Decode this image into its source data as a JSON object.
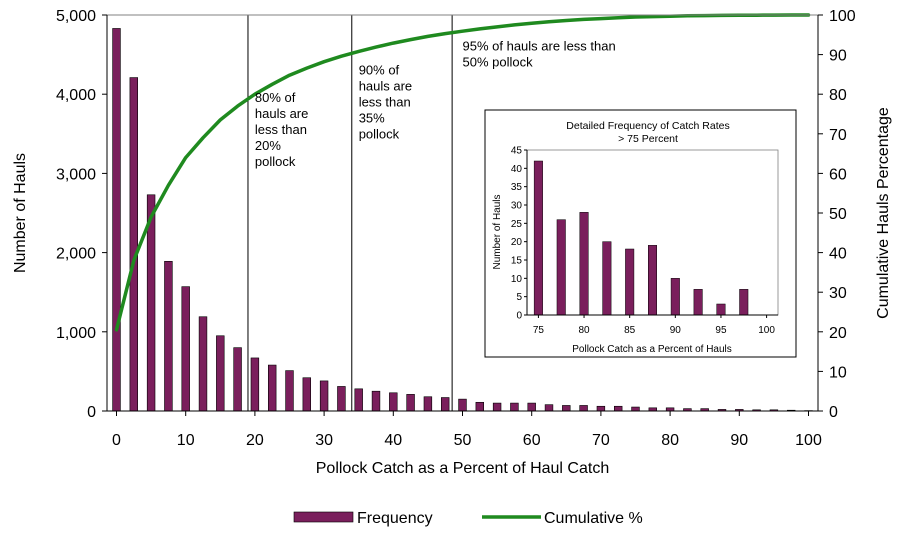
{
  "chart_data": [
    {
      "type": "bar",
      "xlabel": "Pollock Catch as a Percent of Haul Catch",
      "ylabel": "Number of Hauls",
      "y2label": "Cumulative Hauls Percentage",
      "xlim": [
        0,
        100
      ],
      "ylim": [
        0,
        5000
      ],
      "y2lim": [
        0,
        100
      ],
      "xticks": [
        "0",
        "10",
        "20",
        "30",
        "40",
        "50",
        "60",
        "70",
        "80",
        "90",
        "100"
      ],
      "yticks": [
        "0",
        "1,000",
        "2,000",
        "3,000",
        "4,000",
        "5,000"
      ],
      "y2ticks": [
        "0",
        "10",
        "20",
        "30",
        "40",
        "50",
        "60",
        "70",
        "80",
        "90",
        "100"
      ],
      "grid": false,
      "legend_position": "bottom-center",
      "series": [
        {
          "name": "Frequency",
          "kind": "bar",
          "color": "#7a1f5c",
          "x": [
            0,
            2.5,
            5,
            7.5,
            10,
            12.5,
            15,
            17.5,
            20,
            22.5,
            25,
            27.5,
            30,
            32.5,
            35,
            37.5,
            40,
            42.5,
            45,
            47.5,
            50,
            52.5,
            55,
            57.5,
            60,
            62.5,
            65,
            67.5,
            70,
            72.5,
            75,
            77.5,
            80,
            82.5,
            85,
            87.5,
            90,
            92.5,
            95,
            97.5,
            100
          ],
          "values": [
            4830,
            4210,
            2730,
            1890,
            1570,
            1190,
            950,
            800,
            670,
            580,
            510,
            420,
            380,
            310,
            280,
            250,
            230,
            210,
            180,
            170,
            150,
            110,
            100,
            100,
            100,
            80,
            70,
            70,
            60,
            60,
            50,
            40,
            40,
            30,
            30,
            20,
            20,
            15,
            15,
            10,
            5
          ]
        },
        {
          "name": "Cumulative %",
          "kind": "line",
          "axis": "right",
          "color": "#1f8a1f",
          "x": [
            0,
            2.5,
            5,
            7.5,
            10,
            12.5,
            15,
            17.5,
            20,
            22.5,
            25,
            27.5,
            30,
            32.5,
            35,
            37.5,
            40,
            42.5,
            45,
            47.5,
            50,
            52.5,
            55,
            57.5,
            60,
            62.5,
            65,
            67.5,
            70,
            72.5,
            75,
            77.5,
            80,
            82.5,
            85,
            87.5,
            90,
            92.5,
            95,
            97.5,
            100
          ],
          "values": [
            20.5,
            38,
            49,
            57,
            64,
            69,
            73.5,
            77,
            80,
            82.5,
            84.8,
            86.6,
            88.2,
            89.6,
            90.8,
            91.9,
            92.9,
            93.8,
            94.6,
            95.3,
            95.9,
            96.5,
            97,
            97.5,
            97.9,
            98.3,
            98.6,
            98.9,
            99.1,
            99.3,
            99.5,
            99.6,
            99.7,
            99.8,
            99.85,
            99.9,
            99.93,
            99.96,
            99.98,
            99.99,
            100
          ]
        }
      ],
      "vlines": [
        19,
        34,
        48.5
      ],
      "annotations": [
        {
          "id": "a80",
          "x": 20,
          "y2": 78,
          "lines": [
            "80% of",
            "hauls are",
            "less than",
            "20%",
            "pollock"
          ]
        },
        {
          "id": "a90",
          "x": 35,
          "y2": 85,
          "lines": [
            "90% of",
            "hauls are",
            "less than",
            "35%",
            "pollock"
          ]
        },
        {
          "id": "a95",
          "x": 50,
          "y2": 91,
          "lines": [
            "95% of hauls are less than",
            "50% pollock"
          ]
        }
      ]
    },
    {
      "type": "bar",
      "title_lines": [
        "Detailed Frequency of Catch Rates",
        "> 75 Percent"
      ],
      "xlabel": "Pollock Catch as a Percent of Hauls",
      "ylabel": "Number of Hauls",
      "xlim": [
        73.75,
        101.25
      ],
      "ylim": [
        0,
        45
      ],
      "xticks": [
        75,
        80,
        85,
        90,
        95,
        100
      ],
      "yticks": [
        0,
        5,
        10,
        15,
        20,
        25,
        30,
        35,
        40,
        45
      ],
      "color": "#7a1f5c",
      "x": [
        75,
        77.5,
        80,
        82.5,
        85,
        87.5,
        90,
        92.5,
        95,
        97.5
      ],
      "values": [
        42,
        26,
        28,
        20,
        18,
        19,
        10,
        7,
        3,
        7
      ]
    }
  ]
}
